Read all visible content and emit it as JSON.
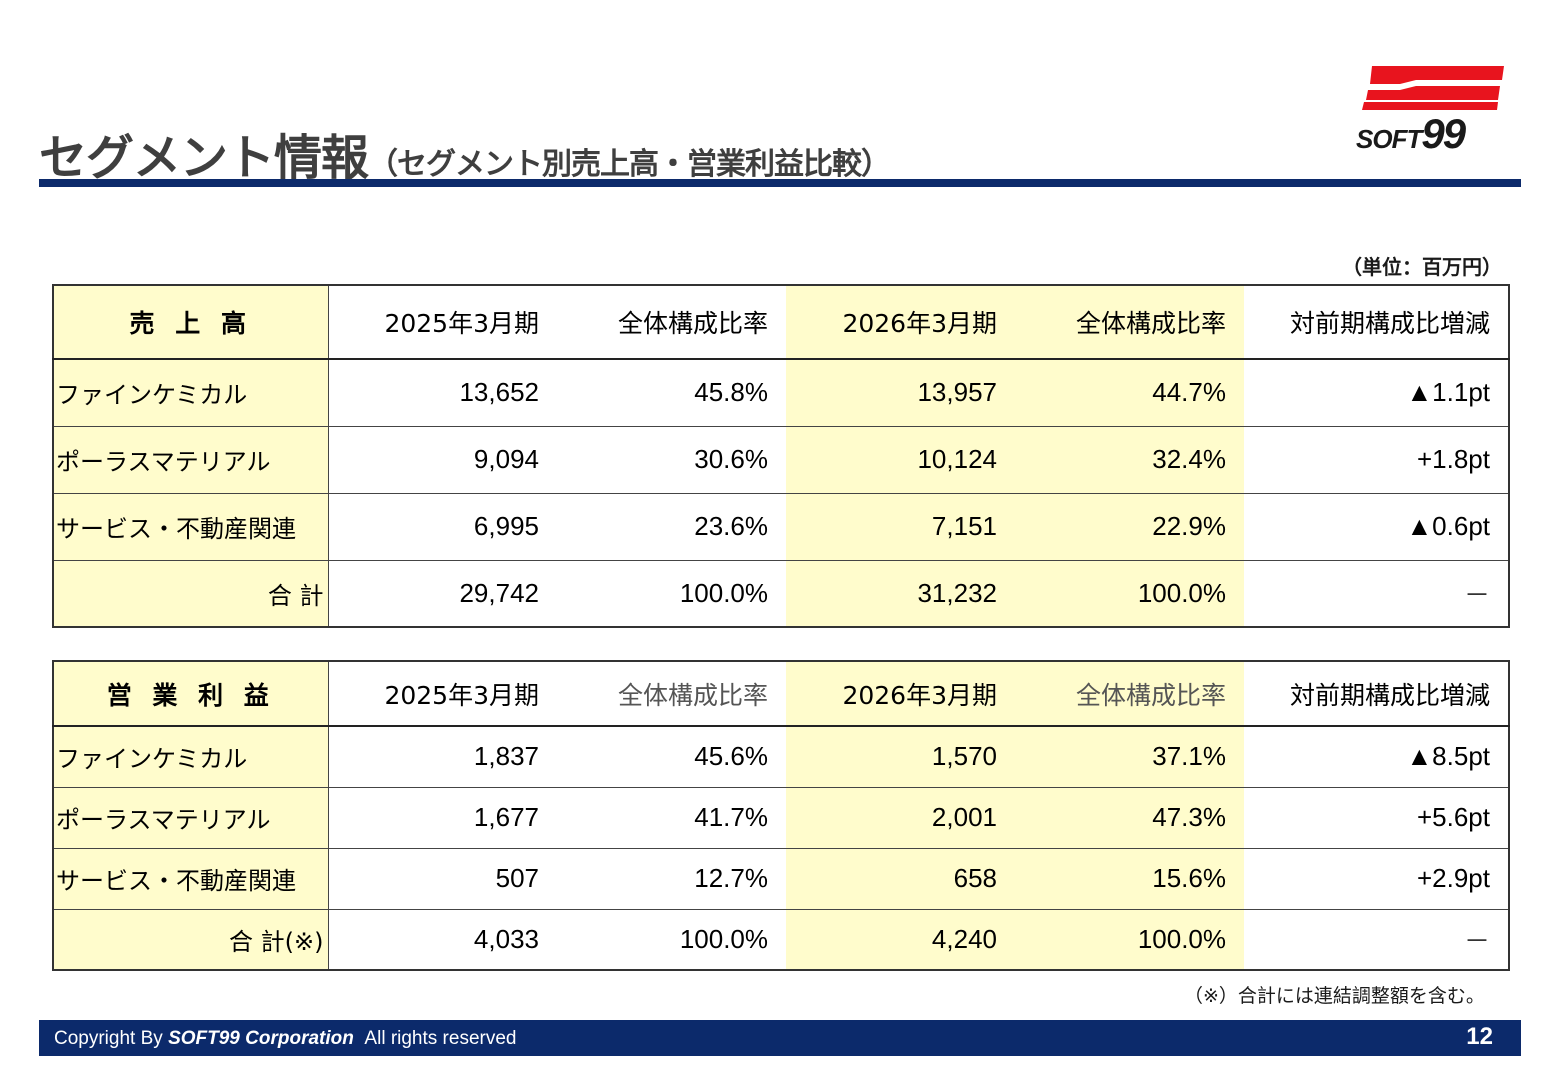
{
  "title": {
    "main": "セグメント情報",
    "sub": "（セグメント別売上高・営業利益比較）"
  },
  "logo": {
    "text_small": "SOFT",
    "text_large": "99",
    "color_red": "#e8141e"
  },
  "unit": "（単位：百万円）",
  "sales": {
    "header": [
      "売 上 高",
      "2025年3月期",
      "全体構成比率",
      "2026年3月期",
      "全体構成比率",
      "対前期構成比増減"
    ],
    "rows": [
      [
        "ファインケミカル",
        "13,652",
        "45.8%",
        "13,957",
        "44.7%",
        "▲1.1pt"
      ],
      [
        "ポーラスマテリアル",
        "9,094",
        "30.6%",
        "10,124",
        "32.4%",
        "+1.8pt"
      ],
      [
        "サービス・不動産関連",
        "6,995",
        "23.6%",
        "7,151",
        "22.9%",
        "▲0.6pt"
      ],
      [
        "合 計",
        "29,742",
        "100.0%",
        "31,232",
        "100.0%",
        "－"
      ]
    ]
  },
  "profit": {
    "header": [
      "営 業 利 益",
      "2025年3月期",
      "全体構成比率",
      "2026年3月期",
      "全体構成比率",
      "対前期構成比増減"
    ],
    "rows": [
      [
        "ファインケミカル",
        "1,837",
        "45.6%",
        "1,570",
        "37.1%",
        "▲8.5pt"
      ],
      [
        "ポーラスマテリアル",
        "1,677",
        "41.7%",
        "2,001",
        "47.3%",
        "+5.6pt"
      ],
      [
        "サービス・不動産関連",
        "507",
        "12.7%",
        "658",
        "15.6%",
        "+2.9pt"
      ],
      [
        "合 計(※)",
        "4,033",
        "100.0%",
        "4,240",
        "100.0%",
        "－"
      ]
    ]
  },
  "note": "（※）合計には連結調整額を含む。",
  "footer": {
    "copyright_prefix": "Copyright By",
    "company": "SOFT99 Corporation",
    "rights": "All rights reserved",
    "page": "12"
  }
}
